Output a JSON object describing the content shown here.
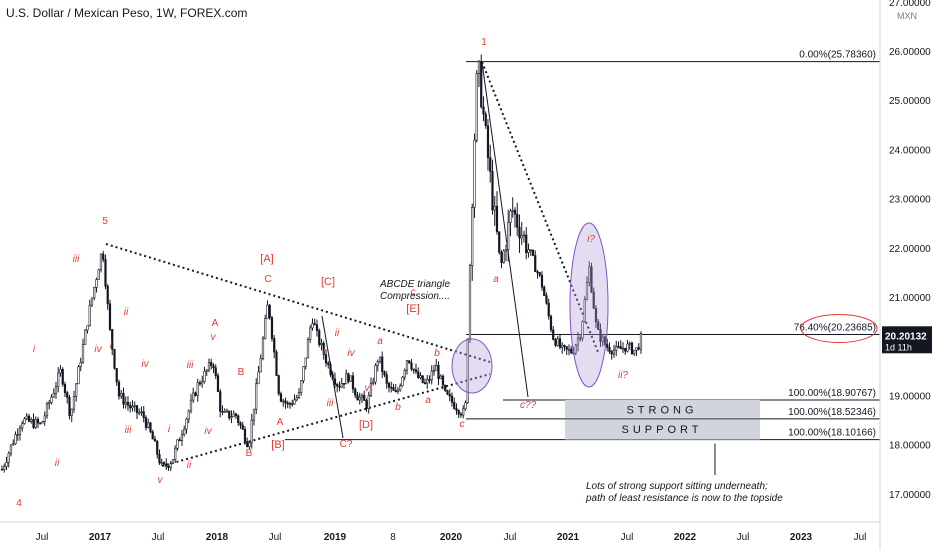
{
  "header": {
    "title": "U.S. Dollar / Mexican Peso, 1W, FOREX.com"
  },
  "price_axis": {
    "currency": "MXN",
    "labels": [
      "27.00000",
      "26.00000",
      "25.00000",
      "24.00000",
      "23.00000",
      "22.00000",
      "21.00000",
      "20.00000",
      "19.00000",
      "18.00000",
      "17.00000"
    ],
    "current_price": "20.20132",
    "countdown": "1d 11h"
  },
  "time_axis": {
    "labels": [
      "Jul",
      "2017",
      "Jul",
      "2018",
      "Jul",
      "2019",
      "8",
      "2020",
      "Jul",
      "2021",
      "Jul",
      "2022",
      "Jul",
      "2023",
      "Jul"
    ]
  },
  "fib_levels": [
    {
      "label": "0.00%(25.78360)",
      "value": 25.7836
    },
    {
      "label": "76.40%(20.23685)",
      "value": 20.23685
    },
    {
      "label": "100.00%(18.90767)",
      "value": 18.90767
    },
    {
      "label": "100.00%(18.52346)",
      "value": 18.52346
    },
    {
      "label": "100.00%(18.10166)",
      "value": 18.10166
    }
  ],
  "support_zone": {
    "line1": "STRONG",
    "line2": "SUPPORT"
  },
  "annotations": {
    "triangle_note": [
      "ABCDE triangle",
      "Compression...."
    ],
    "support_note": [
      "Lots of strong support sitting underneath;",
      "path of least resistance is now to the topside"
    ]
  },
  "wave_labels": [
    "4",
    "ii",
    "i",
    "iii",
    "5",
    "iv",
    "ii",
    "i",
    "iv",
    "iii",
    "v",
    "ii",
    "i",
    "iii",
    "iv",
    "v",
    "A",
    "B",
    "C",
    "[A]",
    "A",
    "[B]",
    "B",
    "i",
    "[C]",
    "ii",
    "iii",
    "C?",
    "iv",
    "v",
    "a",
    "[D]",
    "b",
    "c",
    "[E]",
    "a",
    "c",
    "b",
    "1",
    "a",
    "c??",
    "i?",
    "ii?"
  ],
  "colors": {
    "wave_label": "#e53935",
    "candle": "#131722",
    "support_zone": "#d1d4dc",
    "ellipse_fill": "#b39ddb",
    "current_price_tag": "#131722"
  },
  "chart_data": {
    "type": "candlestick",
    "title": "U.S. Dollar / Mexican Peso, 1W, FOREX.com",
    "y_unit": "MXN",
    "ylim": [
      16.5,
      27.0
    ],
    "x_range": [
      "2016-03",
      "2023-11"
    ],
    "series": [
      {
        "values": [
          [
            "2016-03-01",
            17.5
          ],
          [
            "2016-05-01",
            18.5
          ],
          [
            "2016-07-01",
            18.4
          ],
          [
            "2016-09-01",
            19.5
          ],
          [
            "2016-10-01",
            18.6
          ],
          [
            "2016-12-01",
            20.8
          ],
          [
            "2017-01-09",
            22.0
          ],
          [
            "2017-02-01",
            20.3
          ],
          [
            "2017-03-01",
            19.0
          ],
          [
            "2017-04-15",
            18.7
          ],
          [
            "2017-05-15",
            18.6
          ],
          [
            "2017-06-15",
            18.1
          ],
          [
            "2017-07-15",
            17.5
          ],
          [
            "2017-08-15",
            17.7
          ],
          [
            "2017-09-20",
            18.4
          ],
          [
            "2017-11-01",
            19.2
          ],
          [
            "2017-12-20",
            19.7
          ],
          [
            "2018-01-15",
            18.6
          ],
          [
            "2018-03-01",
            18.6
          ],
          [
            "2018-04-10",
            18.0
          ],
          [
            "2018-06-10",
            20.9
          ],
          [
            "2018-07-15",
            19.0
          ],
          [
            "2018-08-10",
            18.8
          ],
          [
            "2018-09-15",
            19.0
          ],
          [
            "2018-10-25",
            20.6
          ],
          [
            "2018-11-10",
            20.2
          ],
          [
            "2018-12-15",
            19.6
          ],
          [
            "2019-01-15",
            19.2
          ],
          [
            "2019-02-15",
            19.4
          ],
          [
            "2019-03-15",
            19.0
          ],
          [
            "2019-04-15",
            18.8
          ],
          [
            "2019-05-20",
            19.8
          ],
          [
            "2019-06-15",
            19.2
          ],
          [
            "2019-07-15",
            19.0
          ],
          [
            "2019-08-20",
            19.8
          ],
          [
            "2019-09-15",
            19.4
          ],
          [
            "2019-10-15",
            19.2
          ],
          [
            "2019-11-15",
            19.6
          ],
          [
            "2019-12-15",
            19.0
          ],
          [
            "2020-01-15",
            18.8
          ],
          [
            "2020-02-15",
            18.6
          ],
          [
            "2020-03-10",
            23.5
          ],
          [
            "2020-03-25",
            25.78
          ],
          [
            "2020-04-15",
            24.5
          ],
          [
            "2020-05-10",
            23.0
          ],
          [
            "2020-06-05",
            21.6
          ],
          [
            "2020-07-10",
            22.8
          ],
          [
            "2020-08-10",
            22.3
          ],
          [
            "2020-09-10",
            21.8
          ],
          [
            "2020-10-10",
            21.3
          ],
          [
            "2020-11-15",
            20.2
          ],
          [
            "2020-12-15",
            19.9
          ],
          [
            "2021-01-15",
            19.9
          ],
          [
            "2021-02-10",
            20.3
          ],
          [
            "2021-03-08",
            21.6
          ],
          [
            "2021-04-01",
            20.3
          ],
          [
            "2021-05-01",
            20.0
          ],
          [
            "2021-06-01",
            19.9
          ],
          [
            "2021-07-01",
            20.0
          ],
          [
            "2021-08-01",
            19.9
          ],
          [
            "2021-08-20",
            20.2
          ]
        ]
      }
    ],
    "current": 20.20132,
    "grid": false,
    "legend": "none"
  }
}
